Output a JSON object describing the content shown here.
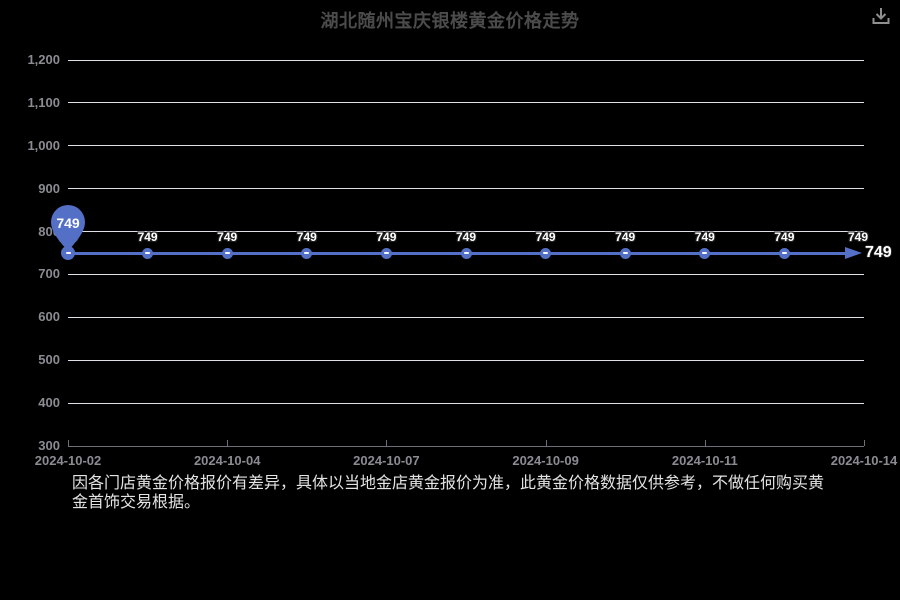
{
  "header": {
    "title": "湖北随州宝庆银楼黄金价格走势"
  },
  "chart_data": {
    "type": "line",
    "title": "湖北随州宝庆银楼黄金价格走势",
    "series": [
      {
        "values": [
          749,
          749,
          749,
          749,
          749,
          749,
          749,
          749,
          749,
          749,
          749
        ],
        "color": "#5470c6",
        "point_labels": [
          "749",
          "749",
          "749",
          "749",
          "749",
          "749",
          "749",
          "749",
          "749",
          "749",
          "749"
        ],
        "end_label": "749"
      }
    ],
    "x_tick_labels": [
      "2024-10-02",
      "2024-10-04",
      "2024-10-07",
      "2024-10-09",
      "2024-10-11",
      "2024-10-14"
    ],
    "x_tick_every": 2,
    "y_tick_labels": [
      "1,200",
      "1,100",
      "1,000",
      "900",
      "800",
      "700",
      "600",
      "500",
      "400",
      "300"
    ],
    "ylim": [
      300,
      1200
    ],
    "grid": "horizontal",
    "legend_position": "none",
    "pin_marker": {
      "point_index": 0,
      "label": "749"
    },
    "colors": {
      "background": "#000000",
      "line": "#5470c6",
      "gridline": "#dfdfe6",
      "axis": "#6e7079",
      "axis_text": "#8a8c92",
      "title_text": "#4b4b4b",
      "point_label_text": "#ffffff"
    }
  },
  "footnote": {
    "line1": "因各门店黄金价格报价有差异，具体以当地金店黄金报价为准，此黄金价格数据仅供参考，不做任何购买黄",
    "line2": "金首饰交易根据。"
  }
}
